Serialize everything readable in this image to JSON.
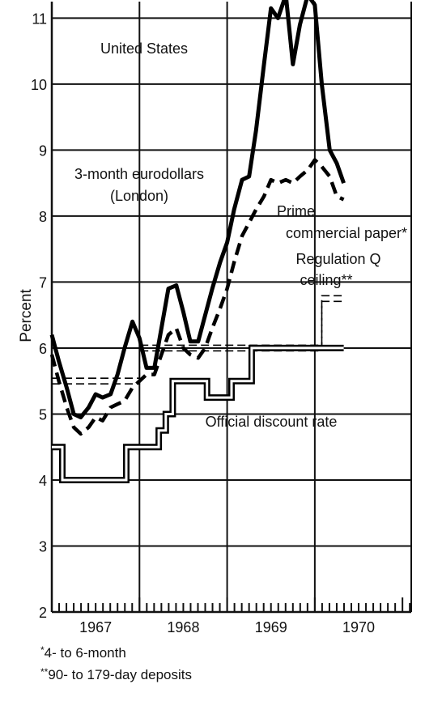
{
  "chart_data": {
    "type": "line",
    "xlabel": "",
    "ylabel": "Percent",
    "xlim": [
      1966.5,
      1970.6
    ],
    "ylim": [
      2,
      11.25
    ],
    "yticks": [
      2,
      3,
      4,
      5,
      6,
      7,
      8,
      9,
      10,
      11
    ],
    "xtick_labels": [
      {
        "x": 1967,
        "label": "1967"
      },
      {
        "x": 1968,
        "label": "1968"
      },
      {
        "x": 1969,
        "label": "1969"
      },
      {
        "x": 1970,
        "label": "1970"
      }
    ],
    "grid": true,
    "series": [
      {
        "name": "3-month eurodollars (London)",
        "style": "solid-thick",
        "x": [
          1966.5,
          1966.58,
          1966.67,
          1966.75,
          1966.83,
          1966.92,
          1967.0,
          1967.08,
          1967.17,
          1967.25,
          1967.33,
          1967.42,
          1967.5,
          1967.58,
          1967.67,
          1967.75,
          1967.83,
          1967.92,
          1968.0,
          1968.08,
          1968.17,
          1968.25,
          1968.33,
          1968.42,
          1968.5,
          1968.58,
          1968.67,
          1968.75,
          1968.83,
          1968.92,
          1969.0,
          1969.08,
          1969.17,
          1969.25,
          1969.33,
          1969.42,
          1969.5,
          1969.58,
          1969.67,
          1969.75,
          1969.83
        ],
        "values": [
          6.2,
          5.8,
          5.4,
          5.0,
          4.95,
          5.1,
          5.3,
          5.25,
          5.3,
          5.6,
          6.0,
          6.4,
          6.15,
          5.7,
          5.7,
          6.3,
          6.9,
          6.95,
          6.55,
          6.1,
          6.1,
          6.5,
          6.9,
          7.3,
          7.6,
          8.1,
          8.55,
          8.6,
          9.3,
          10.3,
          11.15,
          11.0,
          11.35,
          10.3,
          10.9,
          11.35,
          11.2,
          10.0,
          9.0,
          8.8,
          8.5
        ]
      },
      {
        "name": "Prime commercial paper*",
        "style": "dashed",
        "x": [
          1966.5,
          1966.58,
          1966.67,
          1966.75,
          1966.83,
          1966.92,
          1967.0,
          1967.08,
          1967.17,
          1967.25,
          1967.33,
          1967.42,
          1967.5,
          1967.58,
          1967.67,
          1967.75,
          1967.83,
          1967.92,
          1968.0,
          1968.08,
          1968.17,
          1968.25,
          1968.33,
          1968.42,
          1968.5,
          1968.58,
          1968.67,
          1968.75,
          1968.83,
          1968.92,
          1969.0,
          1969.08,
          1969.17,
          1969.25,
          1969.33,
          1969.42,
          1969.5,
          1969.58,
          1969.67,
          1969.75,
          1969.83
        ],
        "values": [
          5.9,
          5.5,
          5.1,
          4.8,
          4.7,
          4.8,
          4.95,
          4.9,
          5.1,
          5.15,
          5.2,
          5.4,
          5.5,
          5.6,
          5.6,
          5.9,
          6.2,
          6.3,
          6.0,
          5.9,
          5.85,
          6.0,
          6.3,
          6.6,
          6.9,
          7.3,
          7.7,
          7.9,
          8.1,
          8.3,
          8.55,
          8.5,
          8.55,
          8.5,
          8.6,
          8.7,
          8.85,
          8.75,
          8.6,
          8.3,
          8.25
        ]
      },
      {
        "name": "Regulation Q ceiling**",
        "style": "double-dashed",
        "x": [
          1966.5,
          1967.5,
          1967.5,
          1968.55,
          1969.58,
          1969.58,
          1969.83
        ],
        "values": [
          5.5,
          5.5,
          6.0,
          6.0,
          6.0,
          6.75,
          6.75
        ]
      },
      {
        "name": "Official discount rate",
        "style": "double-solid",
        "x": [
          1966.5,
          1966.62,
          1966.62,
          1967.35,
          1967.35,
          1967.72,
          1967.72,
          1967.8,
          1967.8,
          1967.88,
          1967.88,
          1968.27,
          1968.27,
          1968.55,
          1968.55,
          1968.78,
          1968.78,
          1969.83
        ],
        "values": [
          4.5,
          4.5,
          4.0,
          4.0,
          4.5,
          4.5,
          4.75,
          4.75,
          5.0,
          5.0,
          5.5,
          5.5,
          5.25,
          5.25,
          5.5,
          5.5,
          6.0,
          6.0
        ]
      }
    ],
    "annotations": {
      "region": "United States",
      "eurodollar_line1": "3-month eurodollars",
      "eurodollar_line2": "(London)",
      "prime_line1": "Prime",
      "prime_line2": "commercial paper*",
      "regq_line1": "Regulation Q",
      "regq_line2": "ceiling**",
      "discount": "Official discount rate"
    },
    "footnotes": {
      "note1_mark": "*",
      "note1_text": "4- to 6-month",
      "note2_mark": "**",
      "note2_text": "90- to 179-day deposits"
    }
  }
}
